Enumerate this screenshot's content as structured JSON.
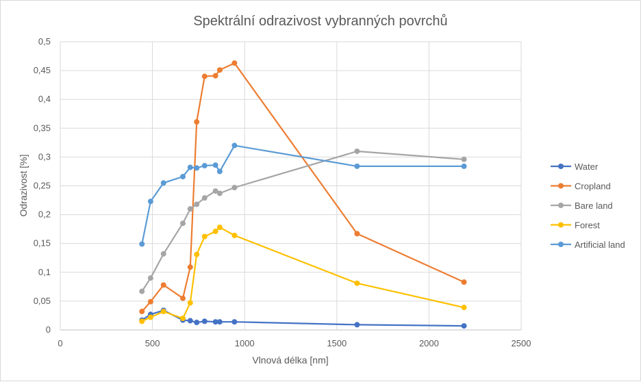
{
  "chart_data": {
    "type": "line",
    "title": "Spektrální odrazivost vybranných povrchů",
    "xlabel": "Vlnová délka [nm]",
    "ylabel": "Odrazivost [%]",
    "xlim": [
      0,
      2500
    ],
    "ylim": [
      0,
      0.5
    ],
    "x_ticks": [
      0,
      500,
      1000,
      1500,
      2000,
      2500
    ],
    "x_tick_labels": [
      "0",
      "500",
      "1000",
      "1500",
      "2000",
      "2500"
    ],
    "y_ticks": [
      0,
      0.05,
      0.1,
      0.15,
      0.2,
      0.25,
      0.3,
      0.35,
      0.4,
      0.45,
      0.5
    ],
    "y_tick_labels": [
      "0",
      "0,05",
      "0,1",
      "0,15",
      "0,2",
      "0,25",
      "0,3",
      "0,35",
      "0,4",
      "0,45",
      "0,5"
    ],
    "grid": true,
    "legend_position": "right",
    "series": [
      {
        "name": "Water",
        "color": "#4472C4",
        "x": [
          443,
          490,
          560,
          665,
          705,
          740,
          783,
          842,
          865,
          945,
          1610,
          2190
        ],
        "y": [
          0.017,
          0.027,
          0.034,
          0.017,
          0.016,
          0.013,
          0.015,
          0.014,
          0.014,
          0.014,
          0.009,
          0.007
        ]
      },
      {
        "name": "Cropland",
        "color": "#ED7D31",
        "x": [
          443,
          490,
          560,
          665,
          705,
          740,
          783,
          842,
          865,
          945,
          1610,
          2190
        ],
        "y": [
          0.032,
          0.049,
          0.078,
          0.055,
          0.109,
          0.361,
          0.44,
          0.441,
          0.451,
          0.463,
          0.167,
          0.083
        ]
      },
      {
        "name": "Bare land",
        "color": "#A5A5A5",
        "x": [
          443,
          490,
          560,
          665,
          705,
          740,
          783,
          842,
          865,
          945,
          1610,
          2190
        ],
        "y": [
          0.067,
          0.09,
          0.132,
          0.185,
          0.21,
          0.218,
          0.229,
          0.241,
          0.237,
          0.247,
          0.31,
          0.296
        ]
      },
      {
        "name": "Forest",
        "color": "#FFC000",
        "x": [
          443,
          490,
          560,
          665,
          705,
          740,
          783,
          842,
          865,
          945,
          1610,
          2190
        ],
        "y": [
          0.015,
          0.022,
          0.032,
          0.02,
          0.047,
          0.131,
          0.162,
          0.171,
          0.178,
          0.164,
          0.081,
          0.039
        ]
      },
      {
        "name": "Artificial land",
        "color": "#5B9BD5",
        "x": [
          443,
          490,
          560,
          665,
          705,
          740,
          783,
          842,
          865,
          945,
          1610,
          2190
        ],
        "y": [
          0.149,
          0.223,
          0.255,
          0.266,
          0.282,
          0.281,
          0.285,
          0.286,
          0.275,
          0.32,
          0.284,
          0.284
        ]
      }
    ]
  }
}
